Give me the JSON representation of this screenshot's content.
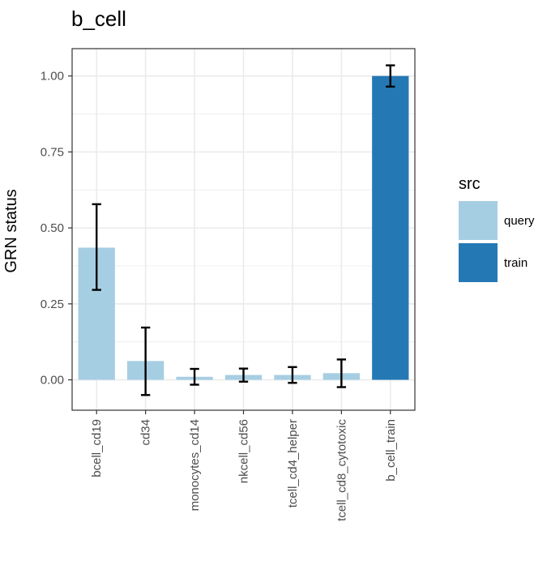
{
  "chart_data": {
    "type": "bar",
    "title": "b_cell",
    "xlabel": "",
    "ylabel": "GRN status",
    "ylim": [
      -0.1,
      1.09
    ],
    "yticks": [
      0.0,
      0.25,
      0.5,
      0.75,
      1.0
    ],
    "ytick_labels": [
      "0.00",
      "0.25",
      "0.50",
      "0.75",
      "1.00"
    ],
    "grid": true,
    "categories": [
      "bcell_cd19",
      "cd34",
      "monocytes_cd14",
      "nkcell_cd56",
      "tcell_cd4_helper",
      "tcell_cd8_cytotoxic",
      "b_cell_train"
    ],
    "values": [
      0.435,
      0.062,
      0.01,
      0.016,
      0.016,
      0.022,
      1.0
    ],
    "error_low": [
      0.296,
      -0.05,
      -0.016,
      -0.006,
      -0.01,
      -0.024,
      0.965
    ],
    "error_high": [
      0.578,
      0.172,
      0.036,
      0.037,
      0.042,
      0.067,
      1.035
    ],
    "src": [
      "query",
      "query",
      "query",
      "query",
      "query",
      "query",
      "train"
    ],
    "legend": {
      "title": "src",
      "position": "right",
      "entries": [
        {
          "label": "query",
          "color": "#a6cee3"
        },
        {
          "label": "train",
          "color": "#2479b5"
        }
      ]
    },
    "colors": {
      "query": "#a6cee3",
      "train": "#2479b5",
      "error": "#000000",
      "grid": "#ebebeb",
      "border": "#333333"
    }
  }
}
